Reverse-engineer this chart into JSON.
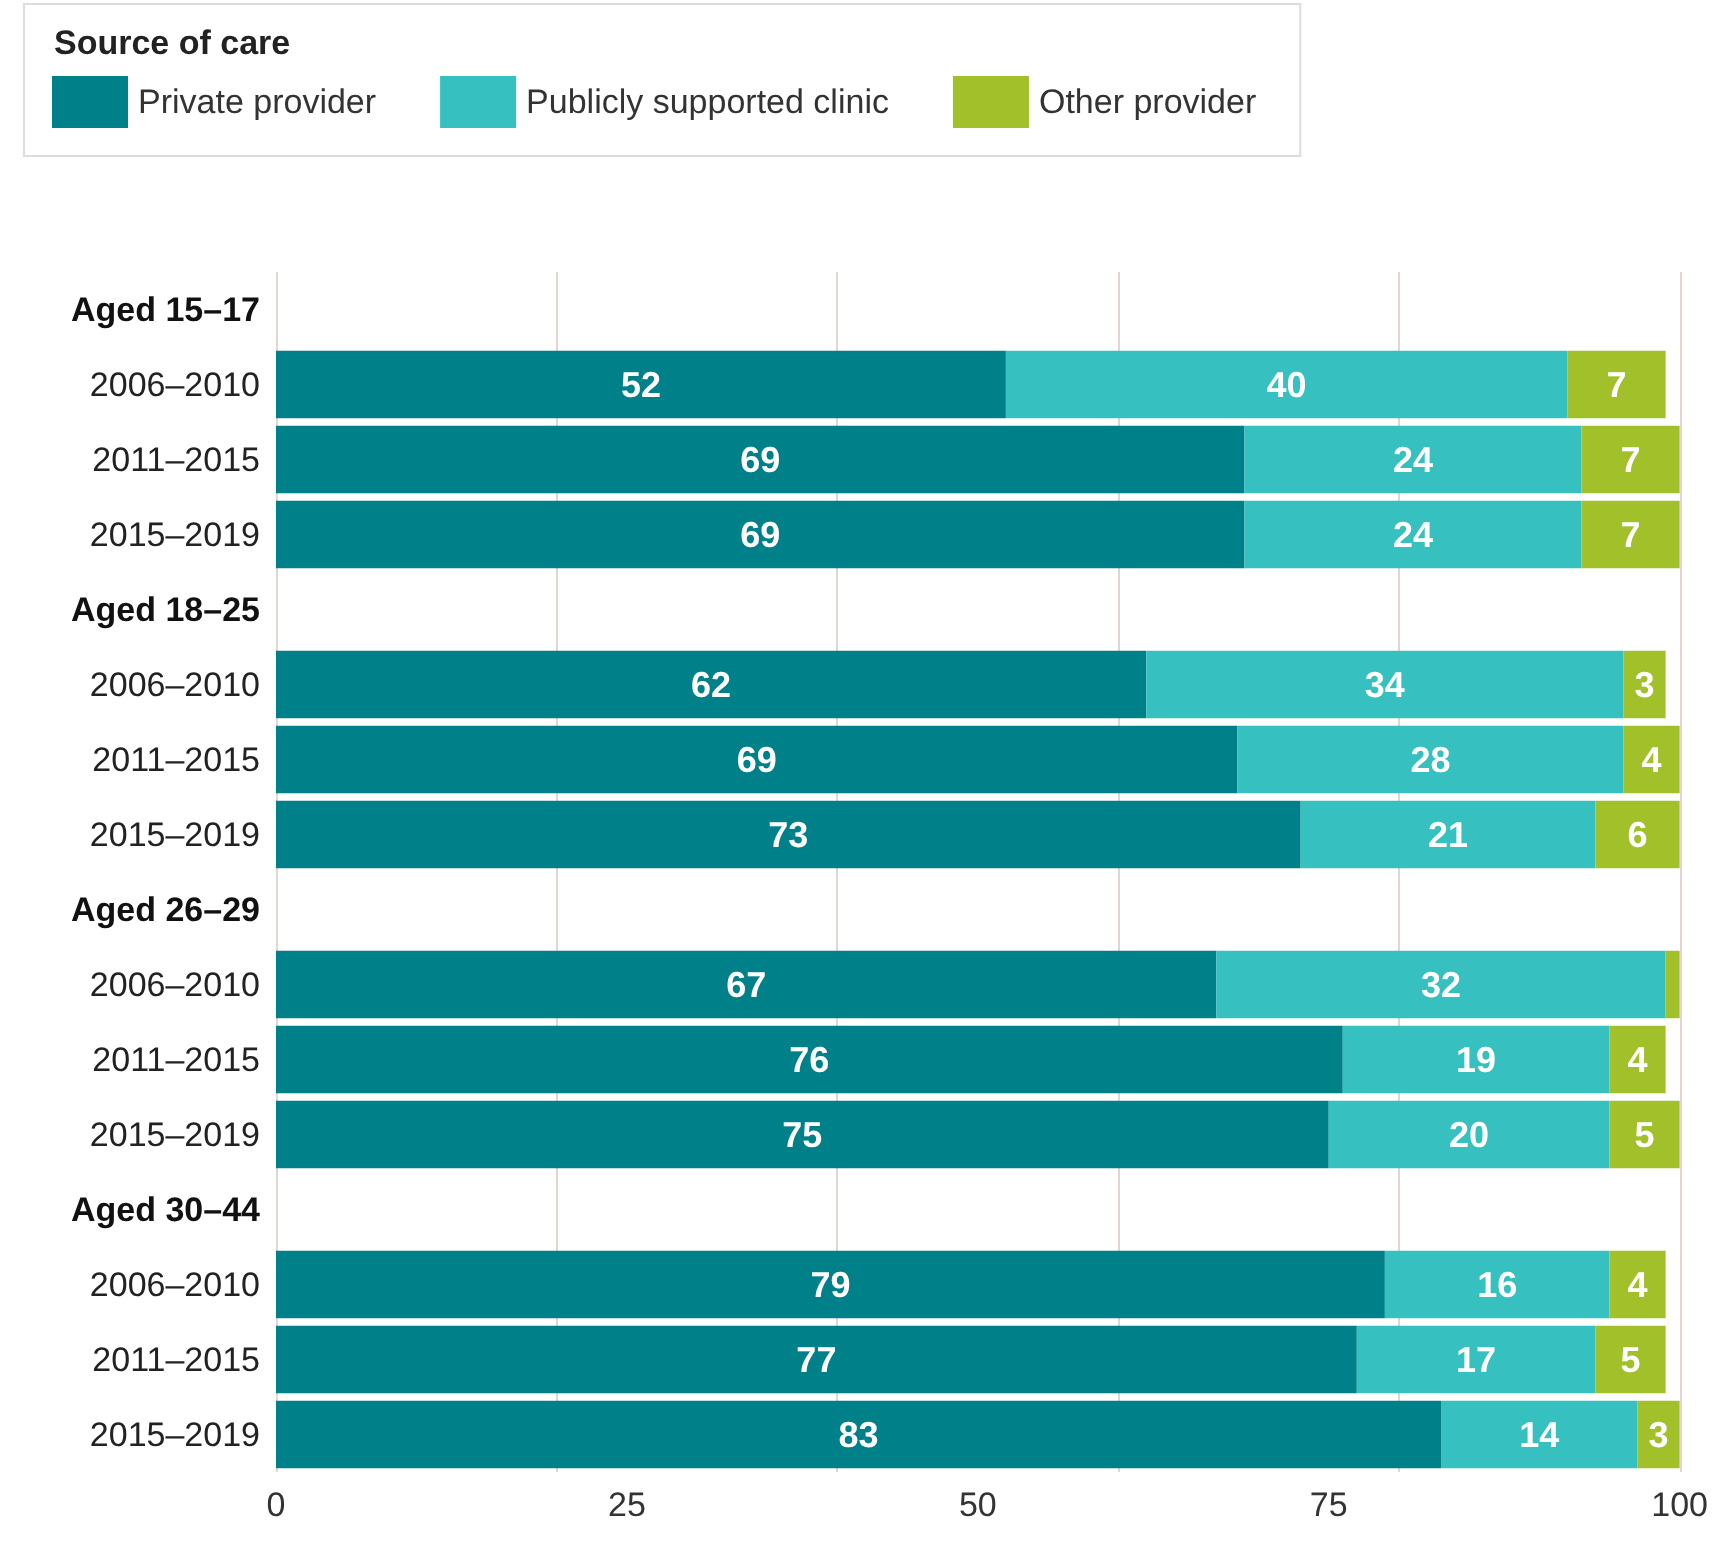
{
  "chart_data": {
    "type": "bar",
    "orientation": "horizontal",
    "stacked": true,
    "legend_title": "Source of care",
    "legend": "top left",
    "grid": "x",
    "categories": [
      "Aged 15–17",
      "2006–2010",
      "2011–2015",
      "2015–2019",
      "Aged 18–25",
      "2006–2010",
      "2011–2015",
      "2015–2019",
      "Aged 26–29",
      "2006–2010",
      "2011–2015",
      "2015–2019",
      "Aged 30–44",
      "2006–2010",
      "2011–2015",
      "2015–2019"
    ],
    "xlim": [
      0,
      100
    ],
    "xticks": [
      0,
      25,
      50,
      75,
      100
    ],
    "series": [
      {
        "name": "Private provider",
        "color": "#00818a",
        "values": [
          null,
          52,
          69,
          69,
          null,
          62,
          68.5,
          73,
          null,
          67,
          76,
          75,
          null,
          79,
          77,
          83
        ],
        "value_labels": [
          null,
          "52",
          "69",
          "69",
          null,
          "62",
          "69",
          "73",
          null,
          "67",
          "76",
          "75",
          null,
          "79",
          "77",
          "83"
        ]
      },
      {
        "name": "Publicly supported clinic",
        "color": "#36c0c0",
        "values": [
          null,
          40,
          24,
          24,
          null,
          34,
          27.5,
          21,
          null,
          32,
          19,
          20,
          null,
          16,
          17,
          14
        ],
        "value_labels": [
          null,
          "40",
          "24",
          "24",
          null,
          "34",
          "28",
          "21",
          null,
          "32",
          "19",
          "20",
          null,
          "16",
          "17",
          "14"
        ]
      },
      {
        "name": "Other provider",
        "color": "#a2c02a",
        "values": [
          null,
          7,
          7,
          7,
          null,
          3,
          4,
          6,
          null,
          1,
          4,
          5,
          null,
          4,
          5,
          3
        ],
        "value_labels": [
          null,
          "7",
          "7",
          "7",
          null,
          "3",
          "4",
          "6",
          null,
          null,
          "4",
          "5",
          null,
          "4",
          "5",
          "3"
        ]
      }
    ]
  }
}
